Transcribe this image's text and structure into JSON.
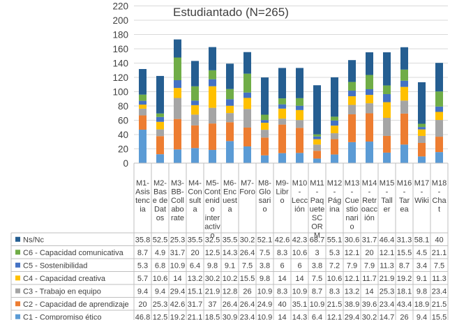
{
  "chart_data": {
    "type": "bar",
    "stacked": true,
    "title": "Estudiantado (N=265)",
    "ylim": [
      0,
      220
    ],
    "ytick_step": 20,
    "grid": true,
    "legend": "data-table",
    "categories": [
      "M1-Asistencia",
      "M2-Base de Datos",
      "M3-BB-Collaborate",
      "M4-Consulta",
      "M5-Contenido interactivo",
      "M6-Encuesta",
      "M7-Foro",
      "M8-Glosario",
      "M9-Libro",
      "M10-Lección",
      "M11-Paquete SCORM",
      "M12-Página",
      "M13-Cuestionario",
      "M14-Retroacción",
      "M15-Taller",
      "M16-Tarea",
      "M17-Wiki",
      "M18-Chat"
    ],
    "category_label_lines": [
      [
        "M1-",
        "Asis",
        "tenc",
        "ia"
      ],
      [
        "M2-",
        "Bas",
        "e de",
        "Dat",
        "os"
      ],
      [
        "M3-",
        "BB-",
        "Coll",
        "abo",
        "rate"
      ],
      [
        "M4-",
        "Con",
        "sult",
        "a"
      ],
      [
        "M5-",
        "Cont",
        "enid",
        "o",
        "inter",
        "activ",
        "o"
      ],
      [
        "M6-",
        "Enc",
        "uest",
        "a"
      ],
      [
        "M7-",
        "Foro"
      ],
      [
        "M8-",
        "Glo",
        "sari",
        "o"
      ],
      [
        "M9-",
        "Libr",
        "o"
      ],
      [
        "M10",
        "-",
        "Lecc",
        "ión"
      ],
      [
        "M11",
        "-",
        "Paq",
        "uete",
        "SC",
        "OR",
        "M"
      ],
      [
        "M12",
        "-",
        "Pág",
        "ina"
      ],
      [
        "M13",
        "-",
        "Cue",
        "stio",
        "nari",
        "o"
      ],
      [
        "M14",
        "-",
        "Retr",
        "oacc",
        "ión"
      ],
      [
        "M15",
        "-",
        "Tall",
        "er"
      ],
      [
        "M16",
        "-",
        "Tar",
        "ea"
      ],
      [
        "M17",
        "-",
        "Wiki"
      ],
      [
        "M18",
        "-",
        "Cha",
        "t"
      ]
    ],
    "series": [
      {
        "name": "C1 - Compromiso ético",
        "color": "#5b9bd5",
        "values": [
          46.8,
          12.5,
          19.2,
          21.1,
          18.5,
          30.9,
          23.4,
          10.9,
          14,
          14.3,
          6.4,
          12.1,
          29.4,
          30.2,
          14.7,
          26,
          9.4,
          15.5
        ]
      },
      {
        "name": "C2 - Capacidad de aprendizaje",
        "color": "#ed7d31",
        "values": [
          20,
          25.3,
          42.6,
          31.7,
          37,
          26.4,
          26.4,
          24.9,
          40,
          35.1,
          10.9,
          21.5,
          38.9,
          39.6,
          23.4,
          43.4,
          18.9,
          21.5
        ]
      },
      {
        "name": "C3 - Trabajo en equipo",
        "color": "#a5a5a5",
        "values": [
          9.4,
          9.4,
          29.4,
          15.1,
          21.9,
          12.8,
          26,
          10.9,
          8.3,
          10.9,
          8.7,
          8.3,
          13.2,
          14,
          25.3,
          18.1,
          9.8,
          23.4
        ]
      },
      {
        "name": "C4 - Capacidad creativa",
        "color": "#ffc000",
        "values": [
          5.7,
          10.6,
          14,
          13.2,
          30.2,
          10.2,
          15.5,
          9.8,
          14,
          14,
          7.5,
          10.6,
          12.1,
          11.7,
          21.9,
          19.2,
          9.1,
          11.3
        ]
      },
      {
        "name": "C5 - Sostenibilidad",
        "color": "#4472c4",
        "values": [
          5.3,
          6.8,
          10.9,
          6.4,
          9.8,
          9.1,
          7.5,
          3.8,
          6,
          6,
          3.8,
          7.2,
          7.9,
          7.9,
          11.3,
          8.7,
          3.4,
          7.5
        ]
      },
      {
        "name": "C6 - Capacidad comunicativa",
        "color": "#70ad47",
        "values": [
          8.7,
          4.9,
          31.7,
          20,
          12.5,
          14.3,
          26.4,
          7.5,
          8.3,
          10.6,
          3,
          5.3,
          12.1,
          20,
          12.1,
          15.5,
          4.5,
          21.1
        ]
      },
      {
        "name": "Ns/Nc",
        "color": "#255e91",
        "values": [
          35.8,
          52.5,
          25.3,
          35.5,
          32.5,
          35.5,
          30.2,
          52.1,
          42.6,
          42.3,
          68.7,
          55.1,
          30.6,
          31.7,
          46.4,
          31.3,
          58.1,
          40
        ]
      }
    ],
    "table_display": [
      [
        "46.8",
        "12.5",
        "19.2",
        "21.1",
        "18.5",
        "30.9",
        "23.4",
        "10.9",
        "14",
        "14.3",
        "6.4",
        "12.1",
        "29.4",
        "30.2",
        "14.7",
        "26",
        "9.4",
        "15.5"
      ],
      [
        "20",
        "25.3",
        "42.6",
        "31.7",
        "37",
        "26.4",
        "26.4",
        "24.9",
        "40",
        "35.1",
        "10.9",
        "21.5",
        "38.9",
        "39.6",
        "23.4",
        "43.4",
        "18.9",
        "21.5"
      ],
      [
        "9.4",
        "9.4",
        "29.4",
        "15.1",
        "21.9",
        "12.8",
        "26",
        "10.9",
        "8.3",
        "10.9",
        "8.7",
        "8.3",
        "13.2",
        "14",
        "25.3",
        "18.1",
        "9.8",
        "23.4"
      ],
      [
        "5.7",
        "10.6",
        "14",
        "13.2",
        "30.2",
        "10.2",
        "15.5",
        "9.8",
        "14",
        "14",
        "7.5",
        "10.6",
        "12.1",
        "11.7",
        "21.9",
        "19.2",
        "9.1",
        "11.3"
      ],
      [
        "5.3",
        "6.8",
        "10.9",
        "6.4",
        "9.8",
        "9.1",
        "7.5",
        "3.8",
        "6",
        "6",
        "3.8",
        "7.2",
        "7.9",
        "7.9",
        "11.3",
        "8.7",
        "3.4",
        "7.5"
      ],
      [
        "8.7",
        "4.9",
        "31.7",
        "20",
        "12.5",
        "14.3",
        "26.4",
        "7.5",
        "8.3",
        "10.6",
        "3",
        "5.3",
        "12.1",
        "20",
        "12.1",
        "15.5",
        "4.5",
        "21.1"
      ],
      [
        "35.8",
        "52.5",
        "25.3",
        "35.5",
        "32.5",
        "35.5",
        "30.2",
        "52.1",
        "42.6",
        "42.3",
        "68.7",
        "55.1",
        "30.6",
        "31.7",
        "46.4",
        "31.3",
        "58.1",
        "40"
      ]
    ]
  }
}
